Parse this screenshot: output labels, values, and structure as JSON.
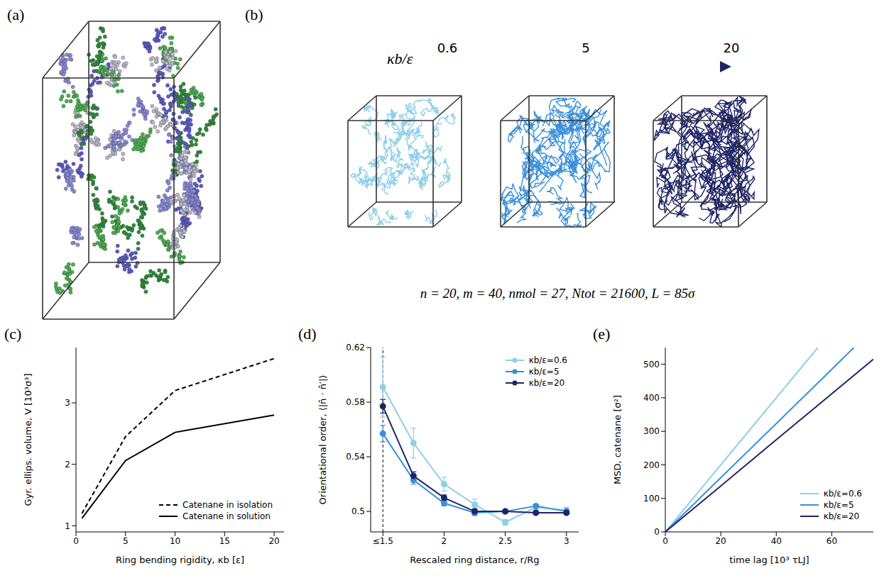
{
  "panel_labels": [
    "(a)",
    "(b)",
    "(c)",
    "(d)",
    "(e)"
  ],
  "rendering_b": {
    "scale_label": "κb/ε",
    "scale_values": [
      0.6,
      5,
      20
    ],
    "colors": [
      "#8ecfe8",
      "#3a8fd9",
      "#1f2466"
    ],
    "parameters": "n = 20, m = 40, nmol = 27, Ntot = 21600, L = 85σ"
  },
  "chart_data": [
    {
      "type": "line",
      "x_label": "Ring bending rigidity, κb [ε]",
      "y_label": "Gyr. ellips. volume, V [10³σ³]",
      "xlim": [
        0,
        21
      ],
      "xticks": [
        0,
        5,
        10,
        15,
        20
      ],
      "ylim": [
        0.9,
        3.9
      ],
      "yticks": [
        1,
        2,
        3
      ],
      "legend": "lower right",
      "series": [
        {
          "name": "Catenane in isolation",
          "color": "#000000",
          "line_style": "dashed",
          "x": [
            0.6,
            5,
            10,
            20
          ],
          "values": [
            1.2,
            2.45,
            3.2,
            3.72
          ]
        },
        {
          "name": "Catenane in solution",
          "color": "#000000",
          "line_style": "solid",
          "x": [
            0.6,
            5,
            10,
            20
          ],
          "values": [
            1.12,
            2.06,
            2.52,
            2.8
          ]
        }
      ]
    },
    {
      "type": "line",
      "x_label": "Rescaled ring distance, r/Rg",
      "y_label": "Orientational order, ⟨|n̂ · n̂′|⟩",
      "xlim": [
        1.4,
        3.1
      ],
      "xticks": [
        {
          "value": 1.5,
          "label": "≤1.5"
        },
        2,
        2.5,
        3
      ],
      "ylim": [
        0.485,
        0.62
      ],
      "yticks": [
        0.5,
        0.54,
        0.58,
        0.62
      ],
      "reference_x": 1.5,
      "legend": "upper right",
      "series": [
        {
          "name": "κb/ε=0.6",
          "color": "#8ecfe8",
          "marker": "circle",
          "line_style": "solid",
          "x": [
            1.5,
            1.75,
            2,
            2.25,
            2.5,
            2.75,
            3
          ],
          "values": [
            0.591,
            0.55,
            0.52,
            0.505,
            0.492,
            0.503,
            0.501
          ],
          "errors": [
            0.022,
            0.011,
            0.005,
            0.004,
            0.002,
            0.002,
            0.002
          ]
        },
        {
          "name": "κb/ε=5",
          "color": "#3a8fd9",
          "marker": "circle",
          "line_style": "solid",
          "x": [
            1.5,
            1.75,
            2,
            2.25,
            2.5,
            2.75,
            3
          ],
          "values": [
            0.557,
            0.523,
            0.506,
            0.499,
            0.5,
            0.504,
            0.5
          ],
          "errors": [
            0.006,
            0.003,
            0.002,
            0.002,
            0.001,
            0.001,
            0.001
          ]
        },
        {
          "name": "κb/ε=20",
          "color": "#1f2466",
          "marker": "circle",
          "line_style": "solid",
          "x": [
            1.5,
            1.75,
            2,
            2.25,
            2.5,
            2.75,
            3
          ],
          "values": [
            0.577,
            0.526,
            0.51,
            0.5,
            0.5,
            0.499,
            0.499
          ],
          "errors": [
            0.005,
            0.003,
            0.002,
            0.002,
            0.001,
            0.001,
            0.001
          ]
        }
      ]
    },
    {
      "type": "line",
      "x_label": "time lag [10³ τLJ]",
      "y_label": "MSD, catenane [σ²]",
      "xlim": [
        0,
        75
      ],
      "xticks": [
        0,
        20,
        40,
        60
      ],
      "ylim": [
        0,
        550
      ],
      "yticks": [
        0,
        100,
        200,
        300,
        400,
        500
      ],
      "legend": "lower right",
      "series": [
        {
          "name": "κb/ε=0.6",
          "color": "#8ecfe8",
          "line_style": "solid",
          "x": [
            0,
            20,
            40,
            55
          ],
          "values": [
            0,
            200,
            400,
            550
          ]
        },
        {
          "name": "κb/ε=5",
          "color": "#3a8fd9",
          "line_style": "solid",
          "x": [
            0,
            20,
            40,
            60,
            68
          ],
          "values": [
            0,
            162,
            323,
            485,
            550
          ]
        },
        {
          "name": "κb/ε=20",
          "color": "#1f2466",
          "line_style": "solid",
          "x": [
            0,
            20,
            40,
            60,
            75
          ],
          "values": [
            0,
            137,
            275,
            412,
            515
          ]
        }
      ]
    }
  ]
}
